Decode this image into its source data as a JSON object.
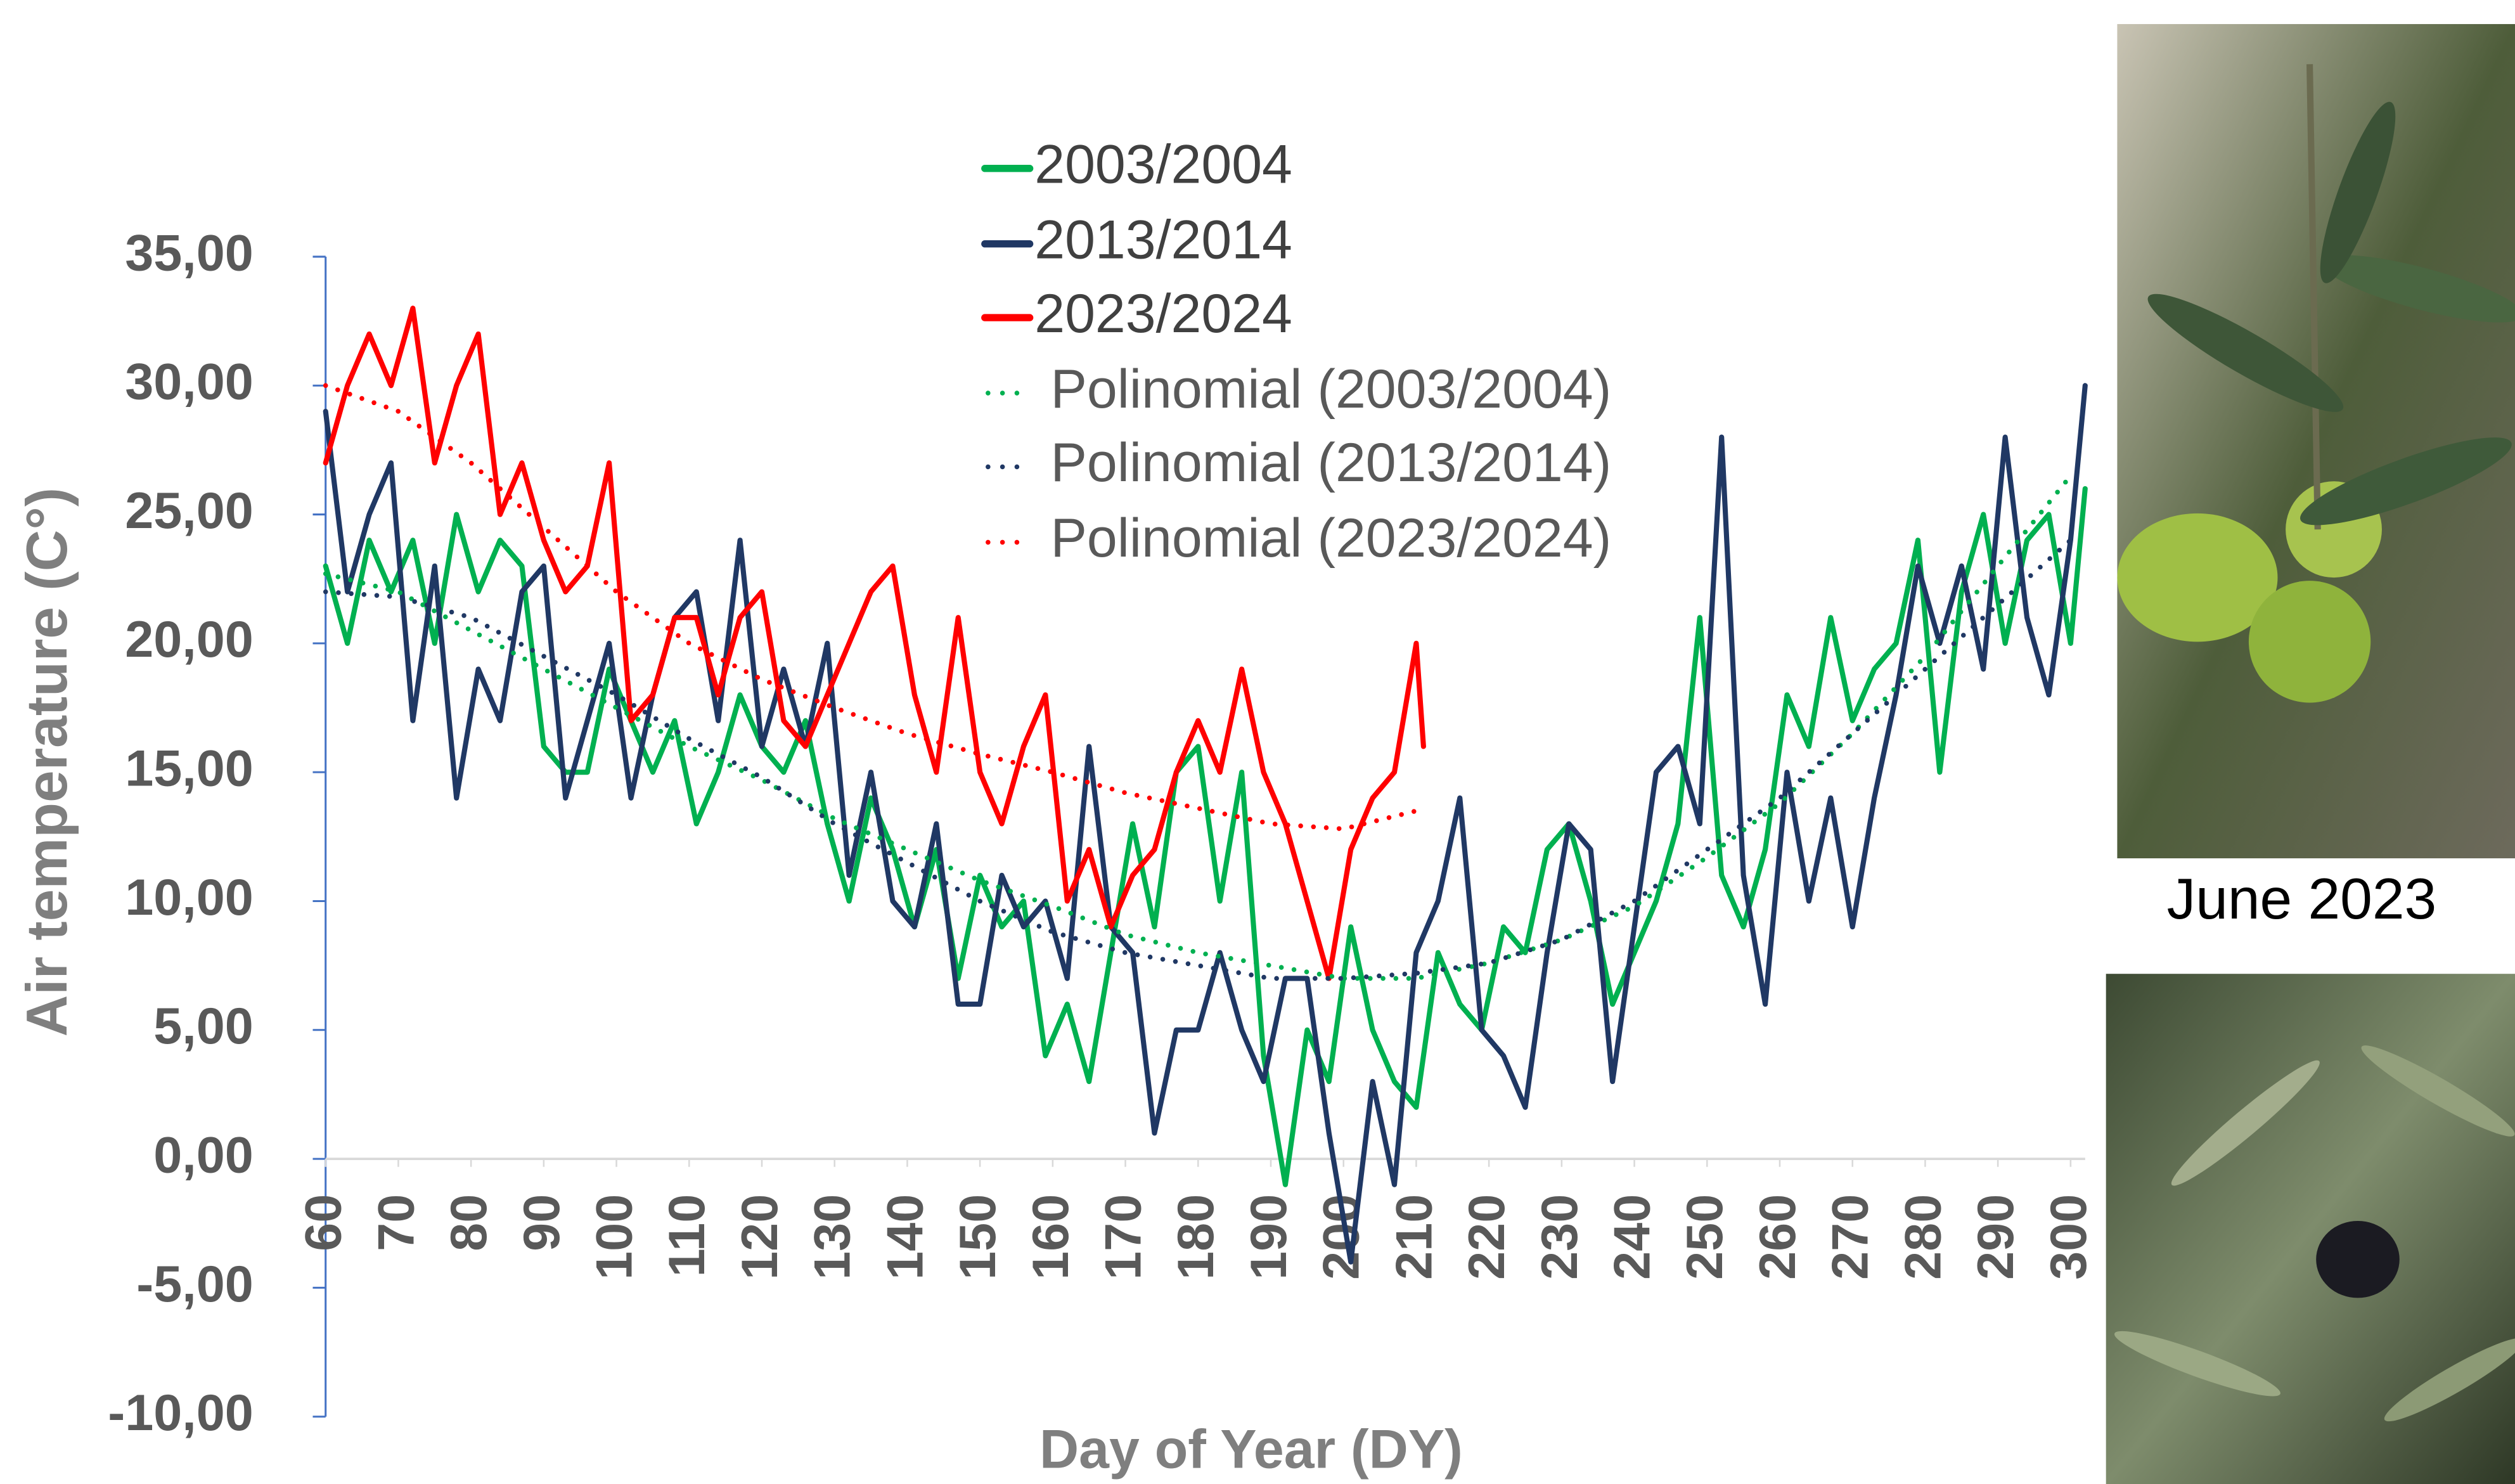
{
  "chart_data": {
    "type": "line",
    "y_label": "Air temperature (C°)",
    "x_label": "Day of Year (DY)",
    "xlim": [
      60,
      302
    ],
    "ylim": [
      -10,
      35
    ],
    "xticks": [
      60,
      70,
      80,
      90,
      100,
      110,
      120,
      130,
      140,
      150,
      160,
      170,
      180,
      190,
      200,
      210,
      220,
      230,
      240,
      250,
      260,
      270,
      280,
      290,
      300
    ],
    "yticks": [
      {
        "value": 35,
        "label": "35,00"
      },
      {
        "value": 30,
        "label": "30,00"
      },
      {
        "value": 25,
        "label": "25,00"
      },
      {
        "value": 20,
        "label": "20,00"
      },
      {
        "value": 15,
        "label": "15,00"
      },
      {
        "value": 10,
        "label": "10,00"
      },
      {
        "value": 5,
        "label": "5,00"
      },
      {
        "value": 0,
        "label": "0,00"
      },
      {
        "value": -5,
        "label": "-5,00"
      },
      {
        "value": -10,
        "label": "-10,00"
      }
    ],
    "series": [
      {
        "name": "2003/2004",
        "color": "#00b050",
        "style": "solid",
        "x": [
          60,
          63,
          66,
          69,
          72,
          75,
          78,
          81,
          84,
          87,
          90,
          93,
          96,
          99,
          102,
          105,
          108,
          111,
          114,
          117,
          120,
          123,
          126,
          129,
          132,
          135,
          138,
          141,
          144,
          147,
          150,
          153,
          156,
          159,
          162,
          165,
          168,
          171,
          174,
          177,
          180,
          183,
          186,
          189,
          192,
          195,
          198,
          201,
          204,
          207,
          210,
          213,
          216,
          219,
          222,
          225,
          228,
          231,
          234,
          237,
          240,
          243,
          246,
          249,
          252,
          255,
          258,
          261,
          264,
          267,
          270,
          273,
          276,
          279,
          282,
          285,
          288,
          291,
          294,
          297,
          300,
          302
        ],
        "values": [
          23,
          20,
          24,
          22,
          24,
          20,
          25,
          22,
          24,
          23,
          16,
          15,
          15,
          19,
          17,
          15,
          17,
          13,
          15,
          18,
          16,
          15,
          17,
          13,
          10,
          14,
          12,
          9,
          12,
          7,
          11,
          9,
          10,
          4,
          6,
          3,
          8,
          13,
          9,
          15,
          16,
          10,
          15,
          4,
          -1,
          5,
          3,
          9,
          5,
          3,
          2,
          8,
          6,
          5,
          9,
          8,
          12,
          13,
          10,
          6,
          8,
          10,
          13,
          21,
          11,
          9,
          12,
          18,
          16,
          21,
          17,
          19,
          20,
          24,
          15,
          22,
          25,
          20,
          24,
          25,
          20,
          26
        ]
      },
      {
        "name": "2013/2014",
        "color": "#203864",
        "style": "solid",
        "x": [
          60,
          63,
          66,
          69,
          72,
          75,
          78,
          81,
          84,
          87,
          90,
          93,
          96,
          99,
          102,
          105,
          108,
          111,
          114,
          117,
          120,
          123,
          126,
          129,
          132,
          135,
          138,
          141,
          144,
          147,
          150,
          153,
          156,
          159,
          162,
          165,
          168,
          171,
          174,
          177,
          180,
          183,
          186,
          189,
          192,
          195,
          198,
          201,
          204,
          207,
          210,
          213,
          216,
          219,
          222,
          225,
          228,
          231,
          234,
          237,
          240,
          243,
          246,
          249,
          252,
          255,
          258,
          261,
          264,
          267,
          270,
          273,
          276,
          279,
          282,
          285,
          288,
          291,
          294,
          297,
          300,
          302
        ],
        "values": [
          29,
          22,
          25,
          27,
          17,
          23,
          14,
          19,
          17,
          22,
          23,
          14,
          17,
          20,
          14,
          18,
          21,
          22,
          17,
          24,
          16,
          19,
          16,
          20,
          11,
          15,
          10,
          9,
          13,
          6,
          6,
          11,
          9,
          10,
          7,
          16,
          9,
          8,
          1,
          5,
          5,
          8,
          5,
          3,
          7,
          7,
          1,
          -4,
          3,
          -1,
          8,
          10,
          14,
          5,
          4,
          2,
          8,
          13,
          12,
          3,
          9,
          15,
          16,
          13,
          28,
          11,
          6,
          15,
          10,
          14,
          9,
          14,
          18,
          23,
          20,
          23,
          19,
          28,
          21,
          18,
          24,
          30
        ]
      },
      {
        "name": "2023/2024",
        "color": "#ff0000",
        "style": "solid",
        "x": [
          60,
          63,
          66,
          69,
          72,
          75,
          78,
          81,
          84,
          87,
          90,
          93,
          96,
          99,
          102,
          105,
          108,
          111,
          114,
          117,
          120,
          123,
          126,
          129,
          132,
          135,
          138,
          141,
          144,
          147,
          150,
          153,
          156,
          159,
          162,
          165,
          168,
          171,
          174,
          177,
          180,
          183,
          186,
          189,
          192,
          195,
          198,
          201,
          204,
          207,
          210,
          211
        ],
        "values": [
          27,
          30,
          32,
          30,
          33,
          27,
          30,
          32,
          25,
          27,
          24,
          22,
          23,
          27,
          17,
          18,
          21,
          21,
          18,
          21,
          22,
          17,
          16,
          18,
          20,
          22,
          23,
          18,
          15,
          21,
          15,
          13,
          16,
          18,
          10,
          12,
          9,
          11,
          12,
          15,
          17,
          15,
          19,
          15,
          13,
          10,
          7,
          12,
          14,
          15,
          20,
          16
        ]
      },
      {
        "name": "Polinomial (2003/2004)",
        "color": "#00b050",
        "style": "dotted",
        "x": [
          60,
          70,
          80,
          90,
          100,
          110,
          120,
          130,
          140,
          150,
          160,
          170,
          180,
          190,
          200,
          210,
          220,
          230,
          240,
          250,
          260,
          270,
          280,
          290,
          300
        ],
        "values": [
          22.7,
          22,
          20.5,
          19,
          17.5,
          16,
          14.7,
          13.2,
          12,
          10.8,
          9.8,
          8.7,
          8,
          7.5,
          7,
          7,
          7.6,
          8.5,
          9.8,
          11.7,
          13.8,
          16.5,
          19.5,
          23,
          26.5
        ]
      },
      {
        "name": "Polinomial (2013/2014)",
        "color": "#203864",
        "style": "dotted",
        "x": [
          60,
          70,
          80,
          90,
          100,
          110,
          120,
          130,
          140,
          150,
          160,
          170,
          180,
          190,
          200,
          210,
          220,
          230,
          240,
          250,
          260,
          270,
          280,
          290,
          300
        ],
        "values": [
          22,
          21.8,
          21,
          19.5,
          18,
          16.3,
          14.8,
          13,
          11.5,
          10,
          8.8,
          8,
          7.5,
          7,
          7,
          7.2,
          7.6,
          8.5,
          10,
          12,
          14,
          16.5,
          19,
          21.5,
          24
        ]
      },
      {
        "name": "Polinomial (2023/2024)",
        "color": "#ff0000",
        "style": "dotted",
        "x": [
          60,
          70,
          80,
          90,
          100,
          110,
          120,
          130,
          140,
          150,
          160,
          170,
          180,
          190,
          200,
          210
        ],
        "values": [
          30,
          29,
          27,
          24.5,
          22,
          20,
          18.6,
          17.5,
          16.5,
          15.7,
          15,
          14.2,
          13.6,
          13,
          12.8,
          13.5
        ]
      }
    ]
  },
  "photos": {
    "caption": "June 2023"
  }
}
